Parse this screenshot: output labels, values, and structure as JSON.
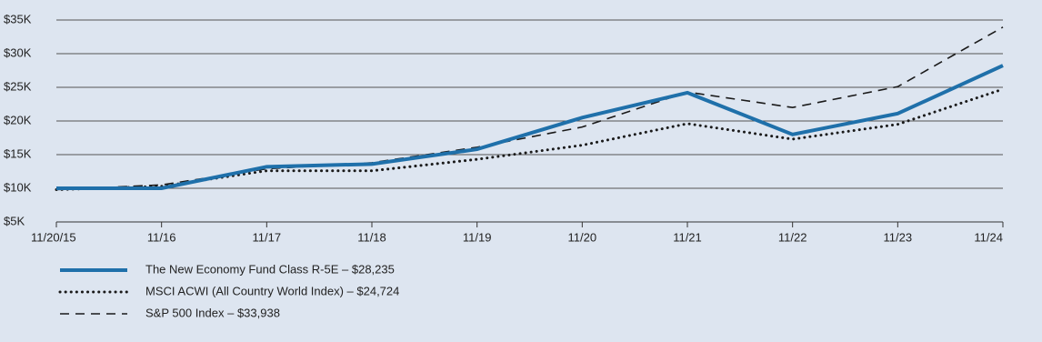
{
  "chart_data": {
    "type": "line",
    "categories": [
      "11/20/15",
      "11/16",
      "11/17",
      "11/18",
      "11/19",
      "11/20",
      "11/21",
      "11/22",
      "11/23",
      "11/24"
    ],
    "series": [
      {
        "name": "The New Economy Fund Class R-5E – $28,235",
        "color": "#1f70aa",
        "style": "solid",
        "values": [
          10000,
          10000,
          13200,
          13600,
          15800,
          20500,
          24200,
          18000,
          21100,
          28235
        ]
      },
      {
        "name": "MSCI ACWI (All Country World Index) – $24,724",
        "color": "#1a1a1a",
        "style": "dotted",
        "values": [
          9800,
          10300,
          12600,
          12600,
          14300,
          16400,
          19600,
          17300,
          19500,
          24724
        ]
      },
      {
        "name": "S&P 500 Index – $33,938",
        "color": "#1a1a1a",
        "style": "dashed",
        "values": [
          9800,
          10500,
          12900,
          13800,
          16100,
          19100,
          24300,
          22000,
          25100,
          33938
        ]
      }
    ],
    "ylim": [
      5000,
      35000
    ],
    "yticks": [
      {
        "value": 5000,
        "label": "$5K"
      },
      {
        "value": 10000,
        "label": "$10K"
      },
      {
        "value": 15000,
        "label": "$15K"
      },
      {
        "value": 20000,
        "label": "$20K"
      },
      {
        "value": 25000,
        "label": "$25K"
      },
      {
        "value": 30000,
        "label": "$30K"
      },
      {
        "value": 35000,
        "label": "$35K"
      }
    ],
    "grid": true
  }
}
